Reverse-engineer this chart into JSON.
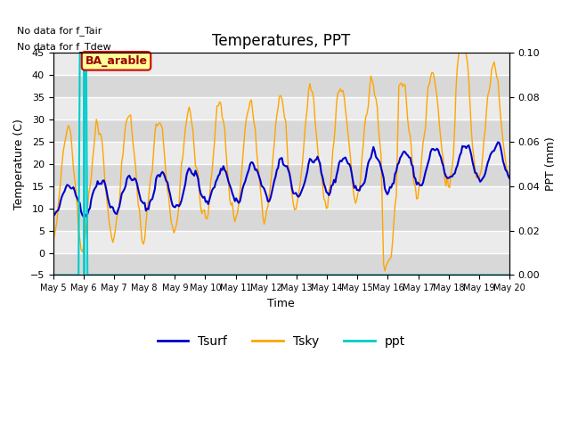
{
  "title": "Temperatures, PPT",
  "xlabel": "Time",
  "ylabel_left": "Temperature (C)",
  "ylabel_right": "PPT (mm)",
  "text_no_data_line1": "No data for f_Tair",
  "text_no_data_line2": "No data for f_Tdew",
  "annotation_label": "BA_arable",
  "ylim_left": [
    -5,
    45
  ],
  "ylim_right": [
    0.0,
    0.1
  ],
  "yticks_left": [
    -5,
    0,
    5,
    10,
    15,
    20,
    25,
    30,
    35,
    40,
    45
  ],
  "yticks_right": [
    0.0,
    0.02,
    0.04,
    0.06,
    0.08,
    0.1
  ],
  "tick_labels": [
    "May 5",
    "May 6",
    "May 7",
    "May 8",
    "May 9",
    "May 10",
    "May 11",
    "May 12",
    "May 13",
    "May 14",
    "May 15",
    "May 16",
    "May 17",
    "May 18",
    "May 19",
    "May 20"
  ],
  "tick_positions": [
    0,
    1,
    2,
    3,
    4,
    5,
    6,
    7,
    8,
    9,
    10,
    11,
    12,
    13,
    14,
    15
  ],
  "color_tsurf": "#0000cc",
  "color_tsky": "#ffa500",
  "color_ppt": "#00cccc",
  "color_vline": "#00cccc",
  "band_light": "#ebebeb",
  "band_dark": "#d8d8d8",
  "grid_color": "#ffffff",
  "annotation_bg": "#ffff99",
  "annotation_border": "#cc0000",
  "annotation_text_color": "#990000"
}
